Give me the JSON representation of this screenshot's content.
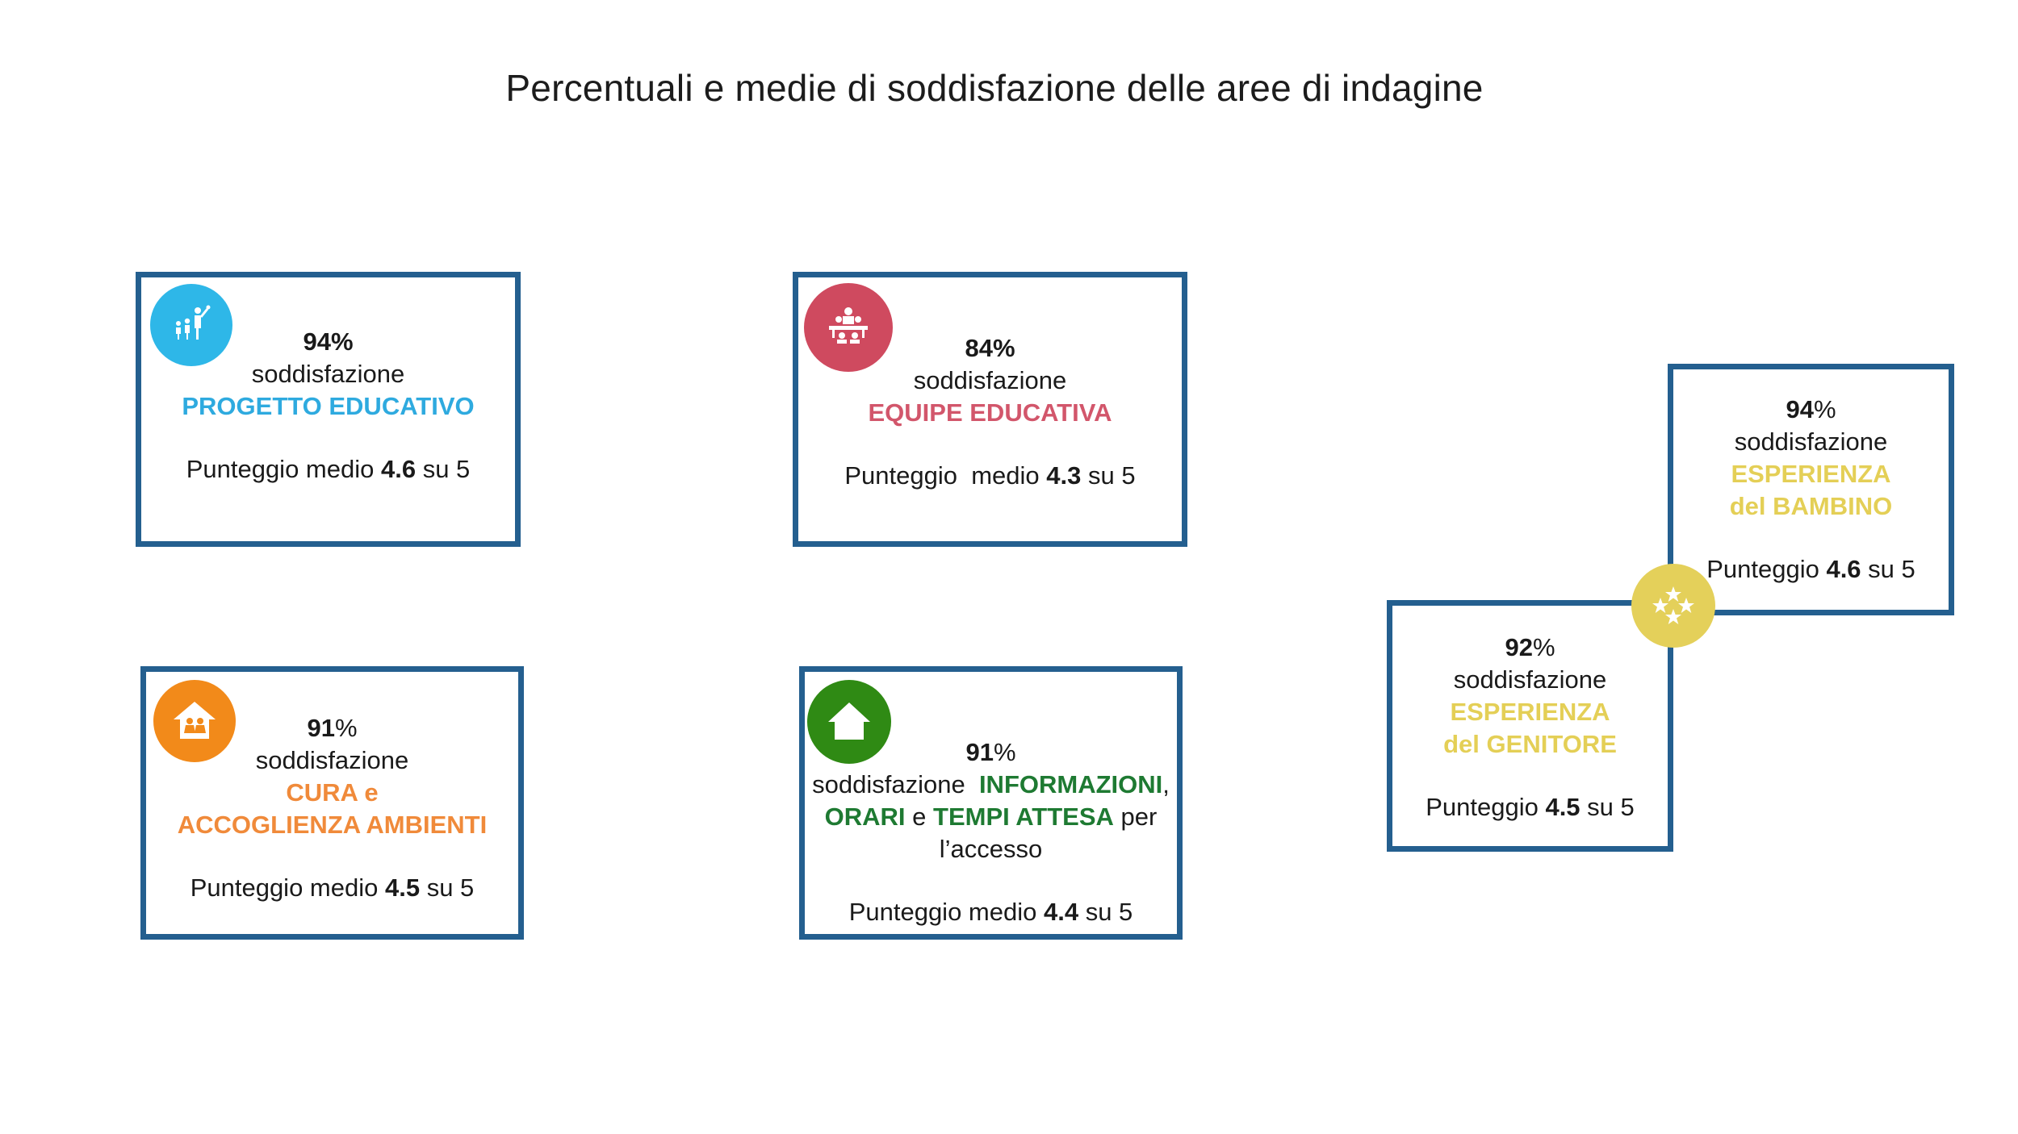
{
  "title": "Percentuali e medie di soddisfazione delle aree di indagine",
  "colors": {
    "border": "#245f8f",
    "blue": "#2eaadf",
    "red": "#cf4a5f",
    "orange": "#f08a3a",
    "green": "#1e7a32",
    "yellow": "#e4cf56"
  },
  "cards": {
    "progetto": {
      "icon": "family-icon",
      "pct": "94%",
      "label1": "soddisfazione",
      "area": "PROGETTO EDUCATIVO",
      "score_prefix": "Punteggio medio ",
      "score": "4.6",
      "score_suffix": " su 5"
    },
    "equipe": {
      "icon": "team-table-icon",
      "pct": "84%",
      "label1": "soddisfazione",
      "area": "EQUIPE EDUCATIVA",
      "score_prefix": "Punteggio  medio ",
      "score": "4.3",
      "score_suffix": " su 5"
    },
    "cura": {
      "icon": "house-children-icon",
      "pct_num": "91",
      "pct_sign": "%",
      "label1": "soddisfazione",
      "area_line1": "CURA e",
      "area_line2": "ACCOGLIENZA AMBIENTI",
      "score_prefix": "Punteggio medio ",
      "score": "4.5",
      "score_suffix": " su 5"
    },
    "informazioni": {
      "icon": "home-icon",
      "pct_num": "91",
      "pct_sign": "%",
      "label1": "soddisfazione  ",
      "area_a": "INFORMAZIONI",
      "comma": ",",
      "area_b": "ORARI",
      "conj": " e ",
      "area_c": "TEMPI ATTESA",
      "per": " per",
      "tail": "l’accesso",
      "score_prefix": "Punteggio medio ",
      "score": "4.4",
      "score_suffix": " su 5"
    },
    "bambino": {
      "pct_num": "94",
      "pct_sign": "%",
      "label1": "soddisfazione",
      "area_line1": "ESPERIENZA",
      "area_line2": "del BAMBINO",
      "score_prefix": "Punteggio ",
      "score": "4.6",
      "score_suffix": " su 5"
    },
    "genitore": {
      "pct_num": "92",
      "pct_sign": "%",
      "label1": "soddisfazione",
      "area_line1": "ESPERIENZA",
      "area_line2": "del GENITORE",
      "score_prefix": "Punteggio ",
      "score": "4.5",
      "score_suffix": " su 5"
    },
    "stars_icon": "stars-icon"
  }
}
